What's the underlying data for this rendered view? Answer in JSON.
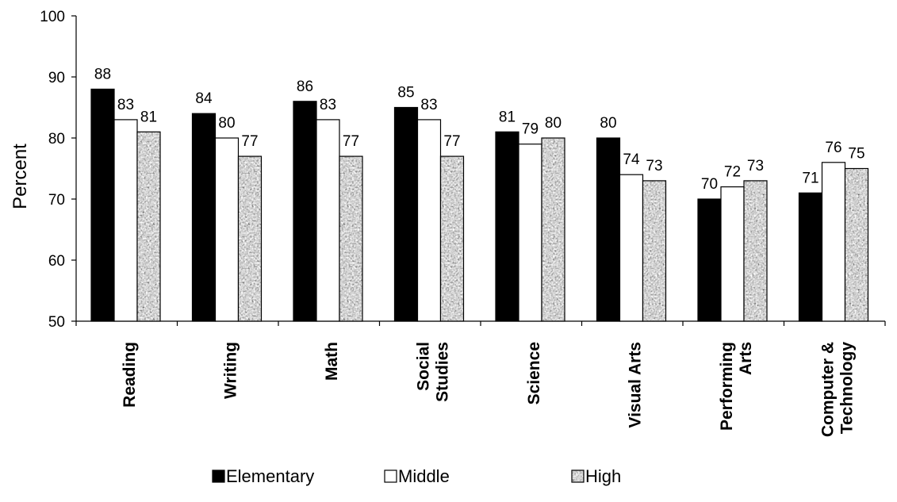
{
  "chart_data": {
    "type": "bar",
    "title": "",
    "xlabel": "",
    "ylabel": "Percent",
    "ylim": [
      50,
      100
    ],
    "yticks": [
      50,
      60,
      70,
      80,
      90,
      100
    ],
    "grid": false,
    "legend": "bottom",
    "categories": [
      [
        "Reading"
      ],
      [
        "Writing"
      ],
      [
        "Math"
      ],
      [
        "Social",
        "Studies"
      ],
      [
        "Science"
      ],
      [
        "Visual Arts"
      ],
      [
        "Performing",
        "Arts"
      ],
      [
        "Computer &",
        "Technology"
      ]
    ],
    "series": [
      {
        "name": "Elementary",
        "fill": "#000000",
        "pattern": "solid",
        "values": [
          88,
          84,
          86,
          85,
          81,
          80,
          70,
          71
        ]
      },
      {
        "name": "Middle",
        "fill": "#ffffff",
        "pattern": "solid",
        "values": [
          83,
          80,
          83,
          83,
          79,
          74,
          72,
          76
        ]
      },
      {
        "name": "High",
        "fill": "#a8a8a8",
        "pattern": "granite",
        "values": [
          81,
          77,
          77,
          77,
          80,
          73,
          73,
          75
        ]
      }
    ]
  }
}
